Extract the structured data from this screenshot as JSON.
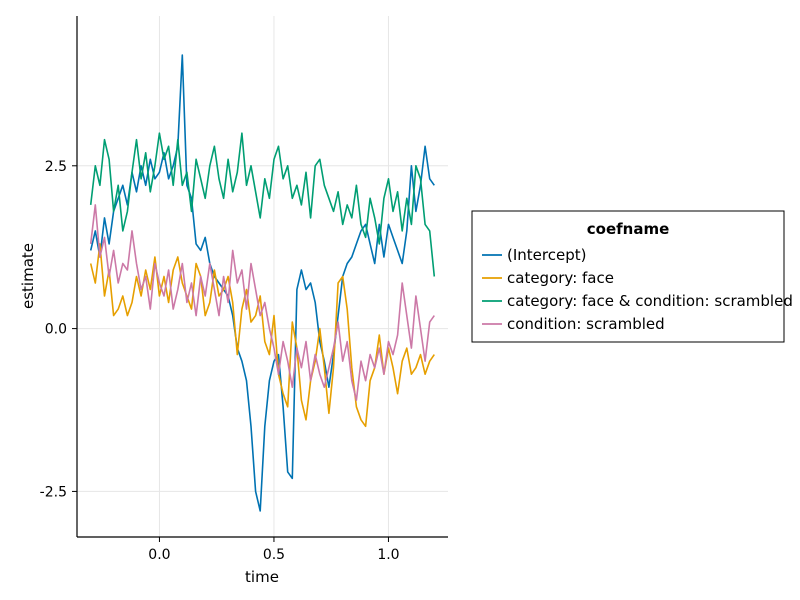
{
  "chart_data": {
    "type": "line",
    "xlabel": "time",
    "ylabel": "estimate",
    "xlim": [
      -0.36,
      1.26
    ],
    "ylim": [
      -3.2,
      4.8
    ],
    "x_ticks": [
      {
        "value": 0.0,
        "label": "0.0"
      },
      {
        "value": 0.5,
        "label": "0.5"
      },
      {
        "value": 1.0,
        "label": "1.0"
      }
    ],
    "y_ticks": [
      {
        "value": 2.5,
        "label": "2.5"
      },
      {
        "value": 0.0,
        "label": "0.0"
      },
      {
        "value": -2.5,
        "label": "-2.5"
      }
    ],
    "grid": true,
    "legend": {
      "title": "coefname",
      "placement": "right"
    },
    "series": [
      {
        "name": "(Intercept)",
        "color": "#0072b2",
        "x": [
          -0.3,
          -0.28,
          -0.26,
          -0.24,
          -0.22,
          -0.2,
          -0.18,
          -0.16,
          -0.14,
          -0.12,
          -0.1,
          -0.08,
          -0.06,
          -0.04,
          -0.02,
          0.0,
          0.02,
          0.04,
          0.06,
          0.08,
          0.1,
          0.12,
          0.14,
          0.16,
          0.18,
          0.2,
          0.22,
          0.24,
          0.26,
          0.28,
          0.3,
          0.32,
          0.34,
          0.36,
          0.38,
          0.4,
          0.42,
          0.44,
          0.46,
          0.48,
          0.5,
          0.52,
          0.54,
          0.56,
          0.58,
          0.6,
          0.62,
          0.64,
          0.66,
          0.68,
          0.7,
          0.72,
          0.74,
          0.76,
          0.78,
          0.8,
          0.82,
          0.84,
          0.86,
          0.88,
          0.9,
          0.92,
          0.94,
          0.96,
          0.98,
          1.0,
          1.02,
          1.04,
          1.06,
          1.08,
          1.1,
          1.12,
          1.14,
          1.16,
          1.18,
          1.2
        ],
        "values": [
          1.2,
          1.5,
          1.1,
          1.7,
          1.3,
          1.8,
          2.0,
          2.2,
          1.9,
          2.4,
          2.1,
          2.5,
          2.2,
          2.6,
          2.3,
          2.4,
          2.7,
          2.3,
          2.5,
          2.8,
          4.2,
          2.2,
          2.0,
          1.3,
          1.2,
          1.4,
          1.0,
          0.8,
          0.7,
          0.6,
          0.5,
          0.2,
          -0.3,
          -0.5,
          -0.8,
          -1.5,
          -2.5,
          -2.8,
          -1.5,
          -0.8,
          -0.5,
          -0.4,
          -1.2,
          -2.2,
          -2.3,
          0.6,
          0.9,
          0.6,
          0.7,
          0.4,
          -0.2,
          -0.5,
          -0.9,
          -0.4,
          0.2,
          0.8,
          1.0,
          1.1,
          1.3,
          1.5,
          1.6,
          1.3,
          1.0,
          1.6,
          1.1,
          1.6,
          1.4,
          1.2,
          1.0,
          1.5,
          2.5,
          1.8,
          2.2,
          2.8,
          2.3,
          2.2
        ]
      },
      {
        "name": "category: face",
        "color": "#e69f00",
        "x": [
          -0.3,
          -0.28,
          -0.26,
          -0.24,
          -0.22,
          -0.2,
          -0.18,
          -0.16,
          -0.14,
          -0.12,
          -0.1,
          -0.08,
          -0.06,
          -0.04,
          -0.02,
          0.0,
          0.02,
          0.04,
          0.06,
          0.08,
          0.1,
          0.12,
          0.14,
          0.16,
          0.18,
          0.2,
          0.22,
          0.24,
          0.26,
          0.28,
          0.3,
          0.32,
          0.34,
          0.36,
          0.38,
          0.4,
          0.42,
          0.44,
          0.46,
          0.48,
          0.5,
          0.52,
          0.54,
          0.56,
          0.58,
          0.6,
          0.62,
          0.64,
          0.66,
          0.68,
          0.7,
          0.72,
          0.74,
          0.76,
          0.78,
          0.8,
          0.82,
          0.84,
          0.86,
          0.88,
          0.9,
          0.92,
          0.94,
          0.96,
          0.98,
          1.0,
          1.02,
          1.04,
          1.06,
          1.08,
          1.1,
          1.12,
          1.14,
          1.16,
          1.18,
          1.2
        ],
        "values": [
          1.0,
          0.7,
          1.3,
          0.5,
          0.9,
          0.2,
          0.3,
          0.5,
          0.2,
          0.4,
          0.8,
          0.5,
          0.9,
          0.6,
          1.1,
          0.5,
          0.8,
          0.4,
          0.9,
          1.1,
          0.7,
          0.5,
          0.3,
          1.0,
          0.8,
          0.2,
          0.4,
          0.9,
          0.5,
          0.6,
          0.8,
          0.4,
          -0.4,
          0.3,
          0.6,
          0.1,
          0.2,
          0.5,
          -0.2,
          -0.4,
          0.2,
          -0.7,
          -1.0,
          -1.2,
          0.1,
          -0.3,
          -1.1,
          -1.4,
          -0.8,
          -0.5,
          0.0,
          -0.6,
          -1.3,
          -0.6,
          0.7,
          0.8,
          0.3,
          -0.6,
          -1.2,
          -1.4,
          -1.5,
          -0.8,
          -0.6,
          -0.1,
          -0.7,
          -0.3,
          -0.6,
          -1.0,
          -0.5,
          -0.3,
          -0.7,
          -0.6,
          -0.4,
          -0.7,
          -0.5,
          -0.4
        ]
      },
      {
        "name": "category: face & condition: scrambled",
        "color": "#009e73",
        "x": [
          -0.3,
          -0.28,
          -0.26,
          -0.24,
          -0.22,
          -0.2,
          -0.18,
          -0.16,
          -0.14,
          -0.12,
          -0.1,
          -0.08,
          -0.06,
          -0.04,
          -0.02,
          0.0,
          0.02,
          0.04,
          0.06,
          0.08,
          0.1,
          0.12,
          0.14,
          0.16,
          0.18,
          0.2,
          0.22,
          0.24,
          0.26,
          0.28,
          0.3,
          0.32,
          0.34,
          0.36,
          0.38,
          0.4,
          0.42,
          0.44,
          0.46,
          0.48,
          0.5,
          0.52,
          0.54,
          0.56,
          0.58,
          0.6,
          0.62,
          0.64,
          0.66,
          0.68,
          0.7,
          0.72,
          0.74,
          0.76,
          0.78,
          0.8,
          0.82,
          0.84,
          0.86,
          0.88,
          0.9,
          0.92,
          0.94,
          0.96,
          0.98,
          1.0,
          1.02,
          1.04,
          1.06,
          1.08,
          1.1,
          1.12,
          1.14,
          1.16,
          1.18,
          1.2
        ],
        "values": [
          1.9,
          2.5,
          2.2,
          2.9,
          2.6,
          1.8,
          2.2,
          1.5,
          1.8,
          2.4,
          2.9,
          2.3,
          2.7,
          2.1,
          2.5,
          3.0,
          2.6,
          2.8,
          2.2,
          2.9,
          2.2,
          2.4,
          1.8,
          2.6,
          2.3,
          2.0,
          2.5,
          2.8,
          2.3,
          2.0,
          2.6,
          2.1,
          2.4,
          3.0,
          2.2,
          2.5,
          2.1,
          1.7,
          2.3,
          2.0,
          2.6,
          2.8,
          2.3,
          2.5,
          2.0,
          2.2,
          1.9,
          2.4,
          1.7,
          2.5,
          2.6,
          2.2,
          2.0,
          1.8,
          2.1,
          1.6,
          1.9,
          1.7,
          2.2,
          1.6,
          1.4,
          2.0,
          1.7,
          1.3,
          2.0,
          2.3,
          1.8,
          2.1,
          1.5,
          2.0,
          1.6,
          2.5,
          2.3,
          1.6,
          1.5,
          0.8
        ]
      },
      {
        "name": "condition: scrambled",
        "color": "#cc79a7",
        "x": [
          -0.3,
          -0.28,
          -0.26,
          -0.24,
          -0.22,
          -0.2,
          -0.18,
          -0.16,
          -0.14,
          -0.12,
          -0.1,
          -0.08,
          -0.06,
          -0.04,
          -0.02,
          0.0,
          0.02,
          0.04,
          0.06,
          0.08,
          0.1,
          0.12,
          0.14,
          0.16,
          0.18,
          0.2,
          0.22,
          0.24,
          0.26,
          0.28,
          0.3,
          0.32,
          0.34,
          0.36,
          0.38,
          0.4,
          0.42,
          0.44,
          0.46,
          0.48,
          0.5,
          0.52,
          0.54,
          0.56,
          0.58,
          0.6,
          0.62,
          0.64,
          0.66,
          0.68,
          0.7,
          0.72,
          0.74,
          0.76,
          0.78,
          0.8,
          0.82,
          0.84,
          0.86,
          0.88,
          0.9,
          0.92,
          0.94,
          0.96,
          0.98,
          1.0,
          1.02,
          1.04,
          1.06,
          1.08,
          1.1,
          1.12,
          1.14,
          1.16,
          1.18,
          1.2
        ],
        "values": [
          1.3,
          1.9,
          1.1,
          1.4,
          0.8,
          1.2,
          0.7,
          1.0,
          0.9,
          1.5,
          1.0,
          0.6,
          0.8,
          0.3,
          1.0,
          0.7,
          0.5,
          0.9,
          0.3,
          0.6,
          1.0,
          0.4,
          0.7,
          0.2,
          0.8,
          0.5,
          1.0,
          0.6,
          0.2,
          0.8,
          0.4,
          1.2,
          0.7,
          0.9,
          0.3,
          1.0,
          0.6,
          0.2,
          0.4,
          0.0,
          -0.3,
          -0.7,
          -0.2,
          -0.5,
          -0.9,
          -0.3,
          -0.6,
          -0.2,
          -0.8,
          -0.4,
          -0.7,
          -0.9,
          -0.6,
          -0.3,
          0.1,
          -0.5,
          -0.2,
          -0.8,
          -1.1,
          -0.5,
          -0.8,
          -0.4,
          -0.6,
          -0.3,
          -0.7,
          -0.2,
          -0.4,
          -0.1,
          0.7,
          0.2,
          -0.3,
          0.5,
          0.0,
          -0.5,
          0.1,
          0.2
        ]
      }
    ]
  }
}
